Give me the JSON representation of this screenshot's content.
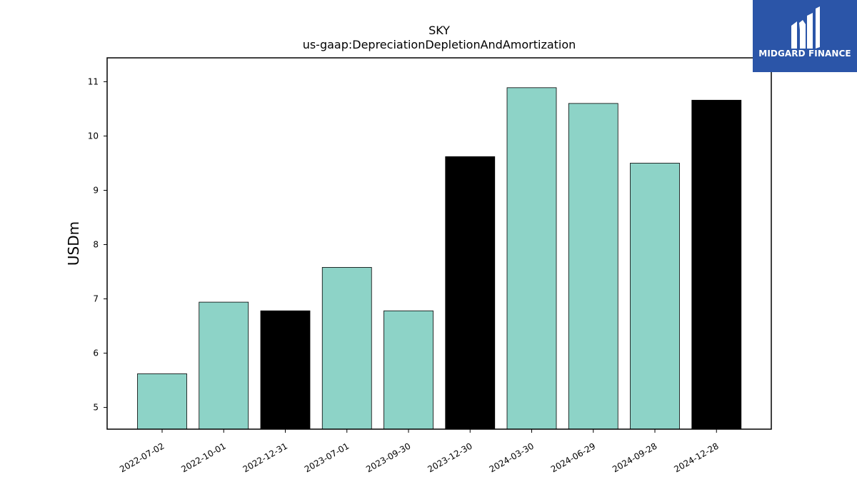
{
  "brand": {
    "name": "MIDGARD FINANCE",
    "logo_icon": "midgard-logo-icon",
    "background_color": "#2b55a8",
    "text_color": "#ffffff"
  },
  "chart_data": {
    "type": "bar",
    "title": "SKY",
    "subtitle": "us-gaap:DepreciationDepletionAndAmortization",
    "xlabel": "",
    "ylabel": "USDm",
    "categories": [
      "2022-07-02",
      "2022-10-01",
      "2022-12-31",
      "2023-07-01",
      "2023-09-30",
      "2023-12-30",
      "2024-03-30",
      "2024-06-29",
      "2024-09-28",
      "2024-12-28"
    ],
    "values": [
      5.62,
      6.94,
      6.78,
      7.58,
      6.78,
      9.62,
      10.89,
      10.6,
      9.5,
      10.66
    ],
    "bar_colors": [
      "#8dd3c7",
      "#8dd3c7",
      "#000000",
      "#8dd3c7",
      "#8dd3c7",
      "#000000",
      "#8dd3c7",
      "#8dd3c7",
      "#8dd3c7",
      "#000000"
    ],
    "ylim": [
      4.6,
      11.44
    ],
    "yticks": [
      5,
      6,
      7,
      8,
      9,
      10,
      11
    ],
    "grid": false,
    "legend": "none"
  }
}
